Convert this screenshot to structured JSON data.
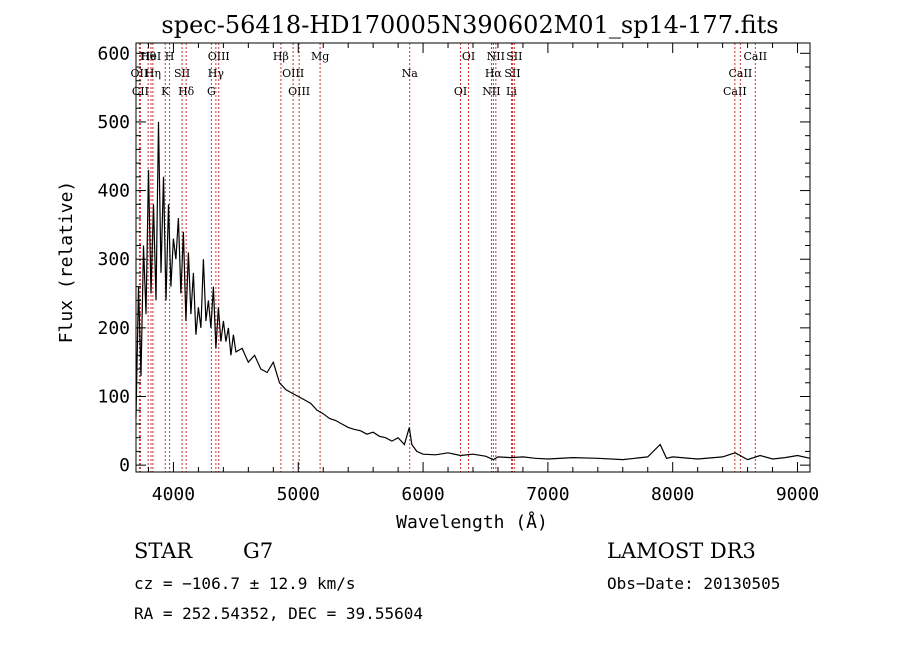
{
  "chart_data": {
    "type": "line",
    "title": "spec-56418-HD170005N390602M01_sp14-177.fits",
    "xlabel": "Wavelength (Å)",
    "ylabel": "Flux (relative)",
    "xlim": [
      3700,
      9100
    ],
    "ylim": [
      -10,
      615
    ],
    "x_ticks": [
      4000,
      5000,
      6000,
      7000,
      8000,
      9000
    ],
    "y_ticks": [
      0,
      100,
      200,
      300,
      400,
      500,
      600
    ],
    "series": [
      {
        "name": "spectrum",
        "x": [
          3700,
          3720,
          3740,
          3760,
          3780,
          3800,
          3820,
          3840,
          3860,
          3880,
          3900,
          3920,
          3940,
          3960,
          3980,
          4000,
          4020,
          4040,
          4060,
          4080,
          4100,
          4120,
          4140,
          4160,
          4180,
          4200,
          4220,
          4240,
          4260,
          4280,
          4300,
          4320,
          4340,
          4360,
          4380,
          4400,
          4420,
          4440,
          4460,
          4480,
          4500,
          4550,
          4600,
          4650,
          4700,
          4750,
          4800,
          4850,
          4900,
          4950,
          5000,
          5050,
          5100,
          5150,
          5200,
          5250,
          5300,
          5350,
          5400,
          5450,
          5500,
          5550,
          5600,
          5650,
          5700,
          5750,
          5800,
          5850,
          5890,
          5910,
          5950,
          6000,
          6100,
          6200,
          6300,
          6400,
          6500,
          6563,
          6600,
          6700,
          6800,
          6900,
          7000,
          7200,
          7400,
          7600,
          7800,
          7900,
          7950,
          8000,
          8200,
          8400,
          8500,
          8600,
          8700,
          8800,
          8900,
          9000,
          9100
        ],
        "y": [
          70,
          260,
          130,
          320,
          220,
          430,
          250,
          380,
          240,
          500,
          280,
          420,
          240,
          380,
          260,
          330,
          300,
          360,
          250,
          340,
          210,
          310,
          220,
          280,
          190,
          230,
          200,
          300,
          210,
          240,
          200,
          260,
          170,
          230,
          180,
          210,
          180,
          200,
          160,
          190,
          165,
          170,
          150,
          160,
          140,
          135,
          150,
          120,
          110,
          105,
          100,
          95,
          90,
          80,
          75,
          68,
          65,
          60,
          55,
          52,
          50,
          45,
          48,
          42,
          40,
          35,
          40,
          30,
          55,
          30,
          20,
          16,
          15,
          18,
          14,
          16,
          13,
          8,
          12,
          11,
          12,
          10,
          9,
          11,
          10,
          8,
          12,
          30,
          10,
          12,
          9,
          12,
          18,
          8,
          14,
          9,
          11,
          14,
          10
        ]
      }
    ],
    "lines": [
      {
        "label": "Hθ",
        "x": 3797
      },
      {
        "label": "OII",
        "x": 3727
      },
      {
        "label": "CII",
        "x": 3735
      },
      {
        "label": "HeI",
        "x": 3820
      },
      {
        "label": "Hη",
        "x": 3835
      },
      {
        "label": "K",
        "x": 3934
      },
      {
        "label": "H",
        "x": 3969
      },
      {
        "label": "SII",
        "x": 4069
      },
      {
        "label": "Hδ",
        "x": 4102
      },
      {
        "label": "OIII",
        "x": 4363
      },
      {
        "label": "Hγ",
        "x": 4340
      },
      {
        "label": "G",
        "x": 4304
      },
      {
        "label": "Hβ",
        "x": 4861
      },
      {
        "label": "OIII",
        "x": 4959
      },
      {
        "label": "OIII",
        "x": 5007
      },
      {
        "label": "Mg",
        "x": 5175
      },
      {
        "label": "Na",
        "x": 5893
      },
      {
        "label": "OI",
        "x": 6300
      },
      {
        "label": "OI",
        "x": 6364
      },
      {
        "label": "Hα",
        "x": 6563
      },
      {
        "label": "NII",
        "x": 6548
      },
      {
        "label": "NII",
        "x": 6583
      },
      {
        "label": "SII",
        "x": 6716
      },
      {
        "label": "Li",
        "x": 6708
      },
      {
        "label": "SII",
        "x": 6731
      },
      {
        "label": "CaII",
        "x": 8542
      },
      {
        "label": "CaII",
        "x": 8498
      },
      {
        "label": "CaII",
        "x": 8662
      }
    ]
  },
  "info": {
    "class": "STAR",
    "subclass": "G7",
    "survey": "LAMOST DR3",
    "cz": "cz = −106.7 ± 12.9 km/s",
    "obs_date": "Obs−Date: 20130505",
    "radec": "RA = 252.54352, DEC =  39.55604"
  },
  "colors": {
    "line_marker": "#cc3333",
    "spectrum": "#000000",
    "axis": "#000000"
  }
}
